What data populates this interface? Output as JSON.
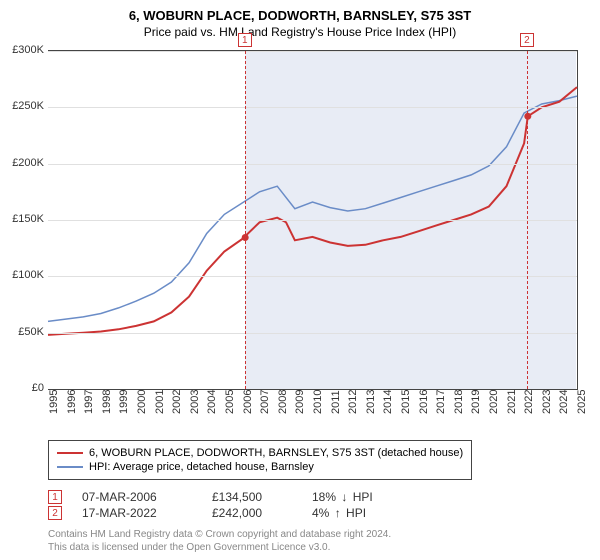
{
  "title": "6, WOBURN PLACE, DODWORTH, BARNSLEY, S75 3ST",
  "subtitle": "Price paid vs. HM Land Registry's House Price Index (HPI)",
  "chart": {
    "background_color": "#ffffff",
    "shaded_color": "#e8ecf5",
    "grid_color": "#e0e0e0",
    "border_color": "#444444",
    "ylim": [
      0,
      300000
    ],
    "ytick_step": 50000,
    "yticks": [
      "£0",
      "£50K",
      "£100K",
      "£150K",
      "£200K",
      "£250K",
      "£300K"
    ],
    "xlim": [
      1995,
      2025
    ],
    "xticks": [
      "1995",
      "1996",
      "1997",
      "1998",
      "1999",
      "2000",
      "2001",
      "2002",
      "2003",
      "2004",
      "2005",
      "2006",
      "2007",
      "2008",
      "2009",
      "2010",
      "2011",
      "2012",
      "2013",
      "2014",
      "2015",
      "2016",
      "2017",
      "2018",
      "2019",
      "2020",
      "2021",
      "2022",
      "2023",
      "2024",
      "2025"
    ],
    "shaded_from": 2006.18,
    "shaded_to": 2025,
    "markers": [
      {
        "label": "1",
        "year": 2006.18,
        "price": 134500
      },
      {
        "label": "2",
        "year": 2022.21,
        "price": 242000
      }
    ],
    "series": [
      {
        "name": "6, WOBURN PLACE, DODWORTH, BARNSLEY, S75 3ST (detached house)",
        "color": "#cc3333",
        "width": 2,
        "points": [
          [
            1995,
            48000
          ],
          [
            1996,
            49000
          ],
          [
            1997,
            50000
          ],
          [
            1998,
            51000
          ],
          [
            1999,
            53000
          ],
          [
            2000,
            56000
          ],
          [
            2001,
            60000
          ],
          [
            2002,
            68000
          ],
          [
            2003,
            82000
          ],
          [
            2004,
            105000
          ],
          [
            2005,
            122000
          ],
          [
            2006,
            133000
          ],
          [
            2007,
            148000
          ],
          [
            2008,
            152000
          ],
          [
            2008.5,
            148000
          ],
          [
            2009,
            132000
          ],
          [
            2010,
            135000
          ],
          [
            2011,
            130000
          ],
          [
            2012,
            127000
          ],
          [
            2013,
            128000
          ],
          [
            2014,
            132000
          ],
          [
            2015,
            135000
          ],
          [
            2016,
            140000
          ],
          [
            2017,
            145000
          ],
          [
            2018,
            150000
          ],
          [
            2019,
            155000
          ],
          [
            2020,
            162000
          ],
          [
            2021,
            180000
          ],
          [
            2022,
            218000
          ],
          [
            2022.21,
            242000
          ],
          [
            2023,
            250000
          ],
          [
            2024,
            255000
          ],
          [
            2025,
            268000
          ]
        ]
      },
      {
        "name": "HPI: Average price, detached house, Barnsley",
        "color": "#6a8cc7",
        "width": 1.5,
        "points": [
          [
            1995,
            60000
          ],
          [
            1996,
            62000
          ],
          [
            1997,
            64000
          ],
          [
            1998,
            67000
          ],
          [
            1999,
            72000
          ],
          [
            2000,
            78000
          ],
          [
            2001,
            85000
          ],
          [
            2002,
            95000
          ],
          [
            2003,
            112000
          ],
          [
            2004,
            138000
          ],
          [
            2005,
            155000
          ],
          [
            2006,
            165000
          ],
          [
            2007,
            175000
          ],
          [
            2008,
            180000
          ],
          [
            2009,
            160000
          ],
          [
            2010,
            166000
          ],
          [
            2011,
            161000
          ],
          [
            2012,
            158000
          ],
          [
            2013,
            160000
          ],
          [
            2014,
            165000
          ],
          [
            2015,
            170000
          ],
          [
            2016,
            175000
          ],
          [
            2017,
            180000
          ],
          [
            2018,
            185000
          ],
          [
            2019,
            190000
          ],
          [
            2020,
            198000
          ],
          [
            2021,
            215000
          ],
          [
            2022,
            245000
          ],
          [
            2023,
            253000
          ],
          [
            2024,
            256000
          ],
          [
            2025,
            260000
          ]
        ]
      }
    ]
  },
  "legend": [
    {
      "color": "#cc3333",
      "label": "6, WOBURN PLACE, DODWORTH, BARNSLEY, S75 3ST (detached house)"
    },
    {
      "color": "#6a8cc7",
      "label": "HPI: Average price, detached house, Barnsley"
    }
  ],
  "sales": [
    {
      "num": "1",
      "date": "07-MAR-2006",
      "price": "£134,500",
      "pct": "18%",
      "arrow": "↓",
      "tag": "HPI"
    },
    {
      "num": "2",
      "date": "17-MAR-2022",
      "price": "£242,000",
      "pct": "4%",
      "arrow": "↑",
      "tag": "HPI"
    }
  ],
  "footer": {
    "line1": "Contains HM Land Registry data © Crown copyright and database right 2024.",
    "line2": "This data is licensed under the Open Government Licence v3.0."
  }
}
